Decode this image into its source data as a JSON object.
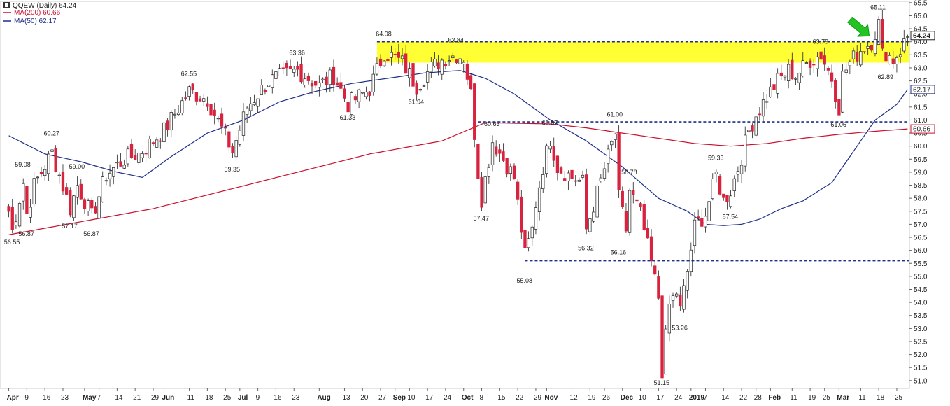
{
  "colors": {
    "up_fill": "#ffffff",
    "down_fill": "#d8233f",
    "candle_stroke": "#222222",
    "ma200": "#c8102e",
    "ma50": "#1f2e8a",
    "zone": "#ffff33",
    "level": "#1f2e8a",
    "arrow": "#22c322",
    "grid": "#e6e6e6"
  },
  "legend": {
    "title": "QQEW (Daily) 64.24",
    "ma200": "MA(200) 60.66",
    "ma50": "MA(50) 62.17"
  },
  "chart_data": {
    "type": "candlestick",
    "ylim": [
      50.7,
      65.55
    ],
    "y_ticks": [
      "51.0",
      "51.5",
      "52.0",
      "52.5",
      "53.0",
      "53.5",
      "54.0",
      "54.5",
      "55.0",
      "55.5",
      "56.0",
      "56.5",
      "57.0",
      "57.5",
      "58.0",
      "58.5",
      "59.0",
      "59.5",
      "60.0",
      "60.5",
      "61.0",
      "61.5",
      "62.0",
      "62.5",
      "63.0",
      "63.5",
      "64.0",
      "64.5",
      "65.0",
      "65.5"
    ],
    "x_labels": [
      {
        "label": "Apr",
        "i": 0
      },
      {
        "label": "9",
        "i": 5
      },
      {
        "label": "16",
        "i": 10
      },
      {
        "label": "23",
        "i": 15
      },
      {
        "label": "May",
        "i": 21
      },
      {
        "label": "7",
        "i": 25
      },
      {
        "label": "14",
        "i": 30
      },
      {
        "label": "21",
        "i": 35
      },
      {
        "label": "29",
        "i": 40
      },
      {
        "label": "Jun",
        "i": 43
      },
      {
        "label": "11",
        "i": 50
      },
      {
        "label": "18",
        "i": 55
      },
      {
        "label": "25",
        "i": 60
      },
      {
        "label": "Jul",
        "i": 64
      },
      {
        "label": "9",
        "i": 69
      },
      {
        "label": "16",
        "i": 74
      },
      {
        "label": "23",
        "i": 79
      },
      {
        "label": "Aug",
        "i": 86
      },
      {
        "label": "13",
        "i": 93
      },
      {
        "label": "20",
        "i": 98
      },
      {
        "label": "27",
        "i": 103
      },
      {
        "label": "Sep",
        "i": 107
      },
      {
        "label": "10",
        "i": 111
      },
      {
        "label": "17",
        "i": 116
      },
      {
        "label": "24",
        "i": 121
      },
      {
        "label": "Oct",
        "i": 126
      },
      {
        "label": "8",
        "i": 131
      },
      {
        "label": "15",
        "i": 136
      },
      {
        "label": "22",
        "i": 141
      },
      {
        "label": "29",
        "i": 146
      },
      {
        "label": "Nov",
        "i": 149
      },
      {
        "label": "12",
        "i": 156
      },
      {
        "label": "19",
        "i": 161
      },
      {
        "label": "26",
        "i": 165
      },
      {
        "label": "Dec",
        "i": 170
      },
      {
        "label": "10",
        "i": 175
      },
      {
        "label": "17",
        "i": 180
      },
      {
        "label": "24",
        "i": 185
      },
      {
        "label": "2019",
        "i": 189
      },
      {
        "label": "7",
        "i": 193
      },
      {
        "label": "14",
        "i": 198
      },
      {
        "label": "22",
        "i": 203
      },
      {
        "label": "28",
        "i": 207
      },
      {
        "label": "Feb",
        "i": 211
      },
      {
        "label": "11",
        "i": 217
      },
      {
        "label": "19",
        "i": 222
      },
      {
        "label": "25",
        "i": 226
      },
      {
        "label": "Mar",
        "i": 230
      },
      {
        "label": "11",
        "i": 236
      },
      {
        "label": "18",
        "i": 241
      },
      {
        "label": "25",
        "i": 246
      }
    ],
    "price_annotations": [
      {
        "text": "56.55",
        "i": 1,
        "value": 56.55,
        "pos": "below"
      },
      {
        "text": "59.08",
        "i": 4,
        "value": 59.08,
        "pos": "above"
      },
      {
        "text": "56.87",
        "i": 5,
        "value": 56.87,
        "pos": "below"
      },
      {
        "text": "60.27",
        "i": 12,
        "value": 60.27,
        "pos": "above"
      },
      {
        "text": "57.17",
        "i": 17,
        "value": 57.17,
        "pos": "below"
      },
      {
        "text": "59.00",
        "i": 19,
        "value": 59.0,
        "pos": "above"
      },
      {
        "text": "56.87",
        "i": 23,
        "value": 56.87,
        "pos": "below"
      },
      {
        "text": "62.55",
        "i": 50,
        "value": 62.55,
        "pos": "above"
      },
      {
        "text": "59.35",
        "i": 62,
        "value": 59.35,
        "pos": "below"
      },
      {
        "text": "63.36",
        "i": 80,
        "value": 63.36,
        "pos": "above"
      },
      {
        "text": "61.33",
        "i": 94,
        "value": 61.33,
        "pos": "below"
      },
      {
        "text": "64.08",
        "i": 104,
        "value": 64.08,
        "pos": "above"
      },
      {
        "text": "63.84",
        "i": 124,
        "value": 63.84,
        "pos": "above"
      },
      {
        "text": "61.94",
        "i": 113,
        "value": 61.94,
        "pos": "below"
      },
      {
        "text": "60.63",
        "i": 134,
        "value": 60.63,
        "pos": "above"
      },
      {
        "text": "57.47",
        "i": 131,
        "value": 57.47,
        "pos": "below"
      },
      {
        "text": "60.67",
        "i": 150,
        "value": 60.67,
        "pos": "above"
      },
      {
        "text": "55.08",
        "i": 143,
        "value": 55.08,
        "pos": "below"
      },
      {
        "text": "56.32",
        "i": 160,
        "value": 56.32,
        "pos": "below"
      },
      {
        "text": "61.00",
        "i": 168,
        "value": 61.0,
        "pos": "above"
      },
      {
        "text": "58.78",
        "i": 172,
        "value": 58.78,
        "pos": "above"
      },
      {
        "text": "56.16",
        "i": 169,
        "value": 56.16,
        "pos": "below"
      },
      {
        "text": "51.15",
        "i": 181,
        "value": 51.15,
        "pos": "below"
      },
      {
        "text": "53.26",
        "i": 186,
        "value": 53.26,
        "pos": "below"
      },
      {
        "text": "59.33",
        "i": 196,
        "value": 59.33,
        "pos": "above"
      },
      {
        "text": "57.54",
        "i": 200,
        "value": 57.54,
        "pos": "below"
      },
      {
        "text": "63.79",
        "i": 225,
        "value": 63.79,
        "pos": "above"
      },
      {
        "text": "61.06",
        "i": 230,
        "value": 61.06,
        "pos": "below"
      },
      {
        "text": "65.11",
        "i": 241,
        "value": 65.11,
        "pos": "above"
      },
      {
        "text": "62.89",
        "i": 243,
        "value": 62.89,
        "pos": "below"
      }
    ],
    "resistance_zone": [
      63.2,
      64.0
    ],
    "levels": [
      60.93,
      55.6
    ],
    "last_price": {
      "value": 64.24,
      "label": "64.24"
    },
    "ma50_last": {
      "value": 62.17,
      "label": "62.17"
    },
    "ma200_last": {
      "value": 60.66,
      "label": "60.66"
    },
    "arrow_at": {
      "i": 236,
      "value": 64.5
    },
    "anchors": [
      [
        0,
        57.5
      ],
      [
        1,
        56.75
      ],
      [
        4,
        58.6
      ],
      [
        5,
        57.4
      ],
      [
        7,
        58.5
      ],
      [
        12,
        59.75
      ],
      [
        17,
        57.6
      ],
      [
        19,
        58.5
      ],
      [
        23,
        57.3
      ],
      [
        27,
        58.9
      ],
      [
        32,
        59.5
      ],
      [
        36,
        59.7
      ],
      [
        43,
        60.6
      ],
      [
        50,
        62.1
      ],
      [
        55,
        61.8
      ],
      [
        62,
        59.8
      ],
      [
        66,
        61.5
      ],
      [
        72,
        62.5
      ],
      [
        80,
        62.9
      ],
      [
        86,
        62.3
      ],
      [
        90,
        62.7
      ],
      [
        94,
        61.6
      ],
      [
        100,
        62.2
      ],
      [
        104,
        63.6
      ],
      [
        109,
        63.2
      ],
      [
        113,
        62.3
      ],
      [
        117,
        63.0
      ],
      [
        121,
        63.4
      ],
      [
        124,
        63.5
      ],
      [
        126,
        63.4
      ],
      [
        128,
        62.0
      ],
      [
        130,
        59.0
      ],
      [
        131,
        58.0
      ],
      [
        134,
        60.2
      ],
      [
        137,
        59.5
      ],
      [
        140,
        58.8
      ],
      [
        143,
        55.8
      ],
      [
        145,
        56.8
      ],
      [
        146,
        57.8
      ],
      [
        148,
        59.2
      ],
      [
        150,
        60.3
      ],
      [
        152,
        59.2
      ],
      [
        156,
        58.8
      ],
      [
        159,
        58.6
      ],
      [
        160,
        56.8
      ],
      [
        163,
        58.2
      ],
      [
        166,
        59.6
      ],
      [
        168,
        60.5
      ],
      [
        169,
        58.0
      ],
      [
        171,
        56.8
      ],
      [
        172,
        58.3
      ],
      [
        175,
        57.4
      ],
      [
        178,
        55.5
      ],
      [
        180,
        54.2
      ],
      [
        181,
        51.4
      ],
      [
        183,
        53.9
      ],
      [
        185,
        54.4
      ],
      [
        186,
        53.7
      ],
      [
        188,
        55.2
      ],
      [
        190,
        56.9
      ],
      [
        193,
        57.4
      ],
      [
        196,
        58.9
      ],
      [
        198,
        57.9
      ],
      [
        200,
        58.3
      ],
      [
        203,
        59.6
      ],
      [
        205,
        60.6
      ],
      [
        207,
        61.2
      ],
      [
        210,
        61.9
      ],
      [
        213,
        62.5
      ],
      [
        216,
        62.9
      ],
      [
        218,
        62.7
      ],
      [
        222,
        63.3
      ],
      [
        225,
        63.5
      ],
      [
        226,
        63.2
      ],
      [
        228,
        62.6
      ],
      [
        230,
        61.5
      ],
      [
        231,
        62.7
      ],
      [
        233,
        63.2
      ],
      [
        236,
        63.7
      ],
      [
        239,
        64.0
      ],
      [
        241,
        64.7
      ],
      [
        242,
        63.5
      ],
      [
        243,
        63.6
      ],
      [
        245,
        63.3
      ],
      [
        247,
        63.7
      ],
      [
        249,
        64.2
      ]
    ],
    "ma50_points": [
      [
        0,
        60.4
      ],
      [
        10,
        59.7
      ],
      [
        20,
        59.4
      ],
      [
        30,
        59.0
      ],
      [
        37,
        58.8
      ],
      [
        45,
        59.6
      ],
      [
        55,
        60.5
      ],
      [
        65,
        61.0
      ],
      [
        75,
        61.7
      ],
      [
        85,
        62.1
      ],
      [
        95,
        62.4
      ],
      [
        105,
        62.6
      ],
      [
        115,
        62.8
      ],
      [
        125,
        62.9
      ],
      [
        132,
        62.6
      ],
      [
        140,
        62.0
      ],
      [
        150,
        61.0
      ],
      [
        160,
        60.2
      ],
      [
        170,
        59.2
      ],
      [
        180,
        58.0
      ],
      [
        188,
        57.5
      ],
      [
        193,
        57.0
      ],
      [
        198,
        56.95
      ],
      [
        203,
        57.0
      ],
      [
        208,
        57.2
      ],
      [
        214,
        57.6
      ],
      [
        220,
        57.9
      ],
      [
        228,
        58.6
      ],
      [
        234,
        59.8
      ],
      [
        240,
        61.0
      ],
      [
        246,
        61.6
      ],
      [
        249,
        62.17
      ]
    ],
    "ma200_points": [
      [
        0,
        56.6
      ],
      [
        20,
        57.1
      ],
      [
        40,
        57.6
      ],
      [
        60,
        58.3
      ],
      [
        80,
        59.0
      ],
      [
        100,
        59.7
      ],
      [
        120,
        60.2
      ],
      [
        132,
        60.9
      ],
      [
        150,
        60.85
      ],
      [
        160,
        60.7
      ],
      [
        170,
        60.5
      ],
      [
        180,
        60.3
      ],
      [
        190,
        60.1
      ],
      [
        200,
        60.0
      ],
      [
        210,
        60.1
      ],
      [
        220,
        60.3
      ],
      [
        230,
        60.45
      ],
      [
        240,
        60.57
      ],
      [
        249,
        60.66
      ]
    ]
  }
}
